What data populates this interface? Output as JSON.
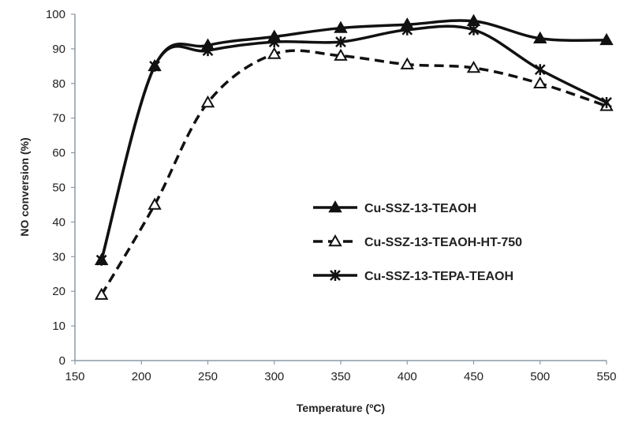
{
  "chart_data": {
    "type": "line",
    "title": "",
    "xlabel": "Temperature (ºC)",
    "ylabel": "NO conversion (%)",
    "xlim": [
      150,
      550
    ],
    "ylim": [
      0,
      100
    ],
    "xticks": [
      150,
      200,
      250,
      300,
      350,
      400,
      450,
      500,
      550
    ],
    "yticks": [
      0,
      10,
      20,
      30,
      40,
      50,
      60,
      70,
      80,
      90,
      100
    ],
    "grid": false,
    "legend_position": "center-right",
    "x": [
      170,
      210,
      250,
      300,
      350,
      400,
      450,
      500,
      550
    ],
    "series": [
      {
        "name": "Cu-SSZ-13-TEAOH",
        "marker": "filled-triangle",
        "dash": false,
        "values": [
          29,
          85,
          91,
          93.5,
          96,
          97,
          98,
          93,
          92.5
        ]
      },
      {
        "name": "Cu-SSZ-13-TEAOH-HT-750",
        "marker": "open-triangle",
        "dash": true,
        "values": [
          19,
          45,
          74.5,
          88.5,
          88,
          85.5,
          84.5,
          80,
          73.5
        ]
      },
      {
        "name": "Cu-SSZ-13-TEPA-TEAOH",
        "marker": "star",
        "dash": false,
        "values": [
          29,
          85,
          89.5,
          92,
          92,
          95.5,
          95.5,
          84,
          74.5
        ]
      }
    ],
    "colors": {
      "line": "#111111",
      "axis": "#8a9aa6"
    }
  }
}
